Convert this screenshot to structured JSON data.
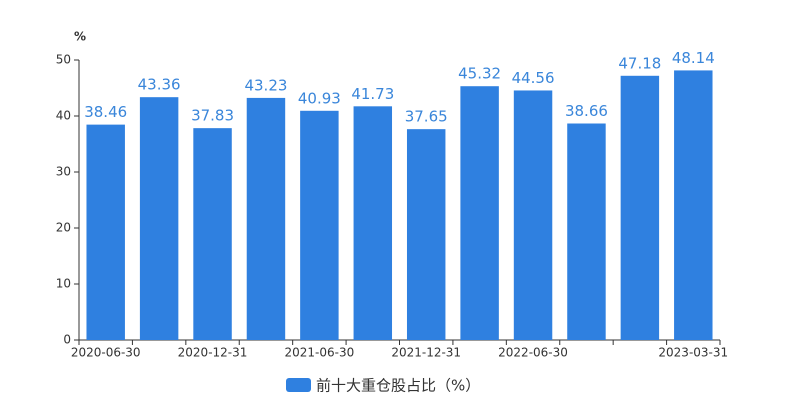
{
  "chart_data": {
    "type": "bar",
    "y_unit": "%",
    "categories": [
      "2020-06-30",
      null,
      "2020-12-31",
      null,
      "2021-06-30",
      null,
      "2021-12-31",
      null,
      "2022-06-30",
      null,
      null,
      "2023-03-31"
    ],
    "series": [
      {
        "name": "前十大重仓股占比（%）",
        "color": "#2f80e0",
        "values": [
          38.46,
          43.36,
          37.83,
          43.23,
          40.93,
          41.73,
          37.65,
          45.32,
          44.56,
          38.66,
          47.18,
          48.14
        ]
      }
    ],
    "ylim": [
      0,
      50
    ],
    "yticks": [
      0,
      10,
      20,
      30,
      40,
      50
    ],
    "grid": false,
    "legend": "bottom"
  }
}
